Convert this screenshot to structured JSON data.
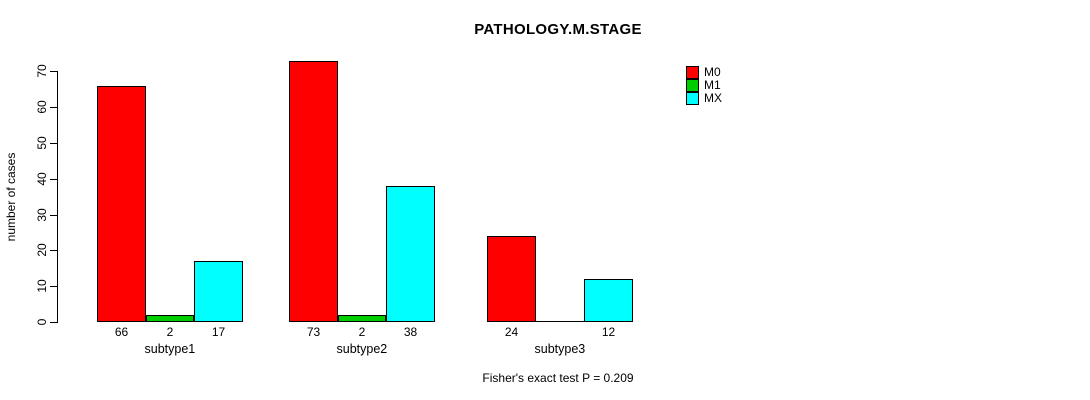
{
  "title": "PATHOLOGY.M.STAGE",
  "annotation": "Fisher's exact test P = 0.209",
  "chart_data": {
    "type": "bar",
    "title": "PATHOLOGY.M.STAGE",
    "categories": [
      "subtype1",
      "subtype2",
      "subtype3"
    ],
    "series": [
      {
        "name": "M0",
        "color": "#FF0000",
        "values": [
          66,
          73,
          24
        ]
      },
      {
        "name": "M1",
        "color": "#00CD00",
        "values": [
          2,
          2,
          0
        ]
      },
      {
        "name": "MX",
        "color": "#00FFFF",
        "values": [
          17,
          38,
          12
        ]
      }
    ],
    "value_labels": [
      [
        66,
        2,
        17
      ],
      [
        73,
        2,
        38
      ],
      [
        24,
        null,
        12
      ]
    ],
    "xlabel": "",
    "ylabel": "number of cases",
    "ylim": [
      0,
      70
    ],
    "yticks": [
      0,
      10,
      20,
      30,
      40,
      50,
      60,
      70
    ],
    "grid": false,
    "legend_position": "topright",
    "annotation": "Fisher's exact test P = 0.209"
  }
}
